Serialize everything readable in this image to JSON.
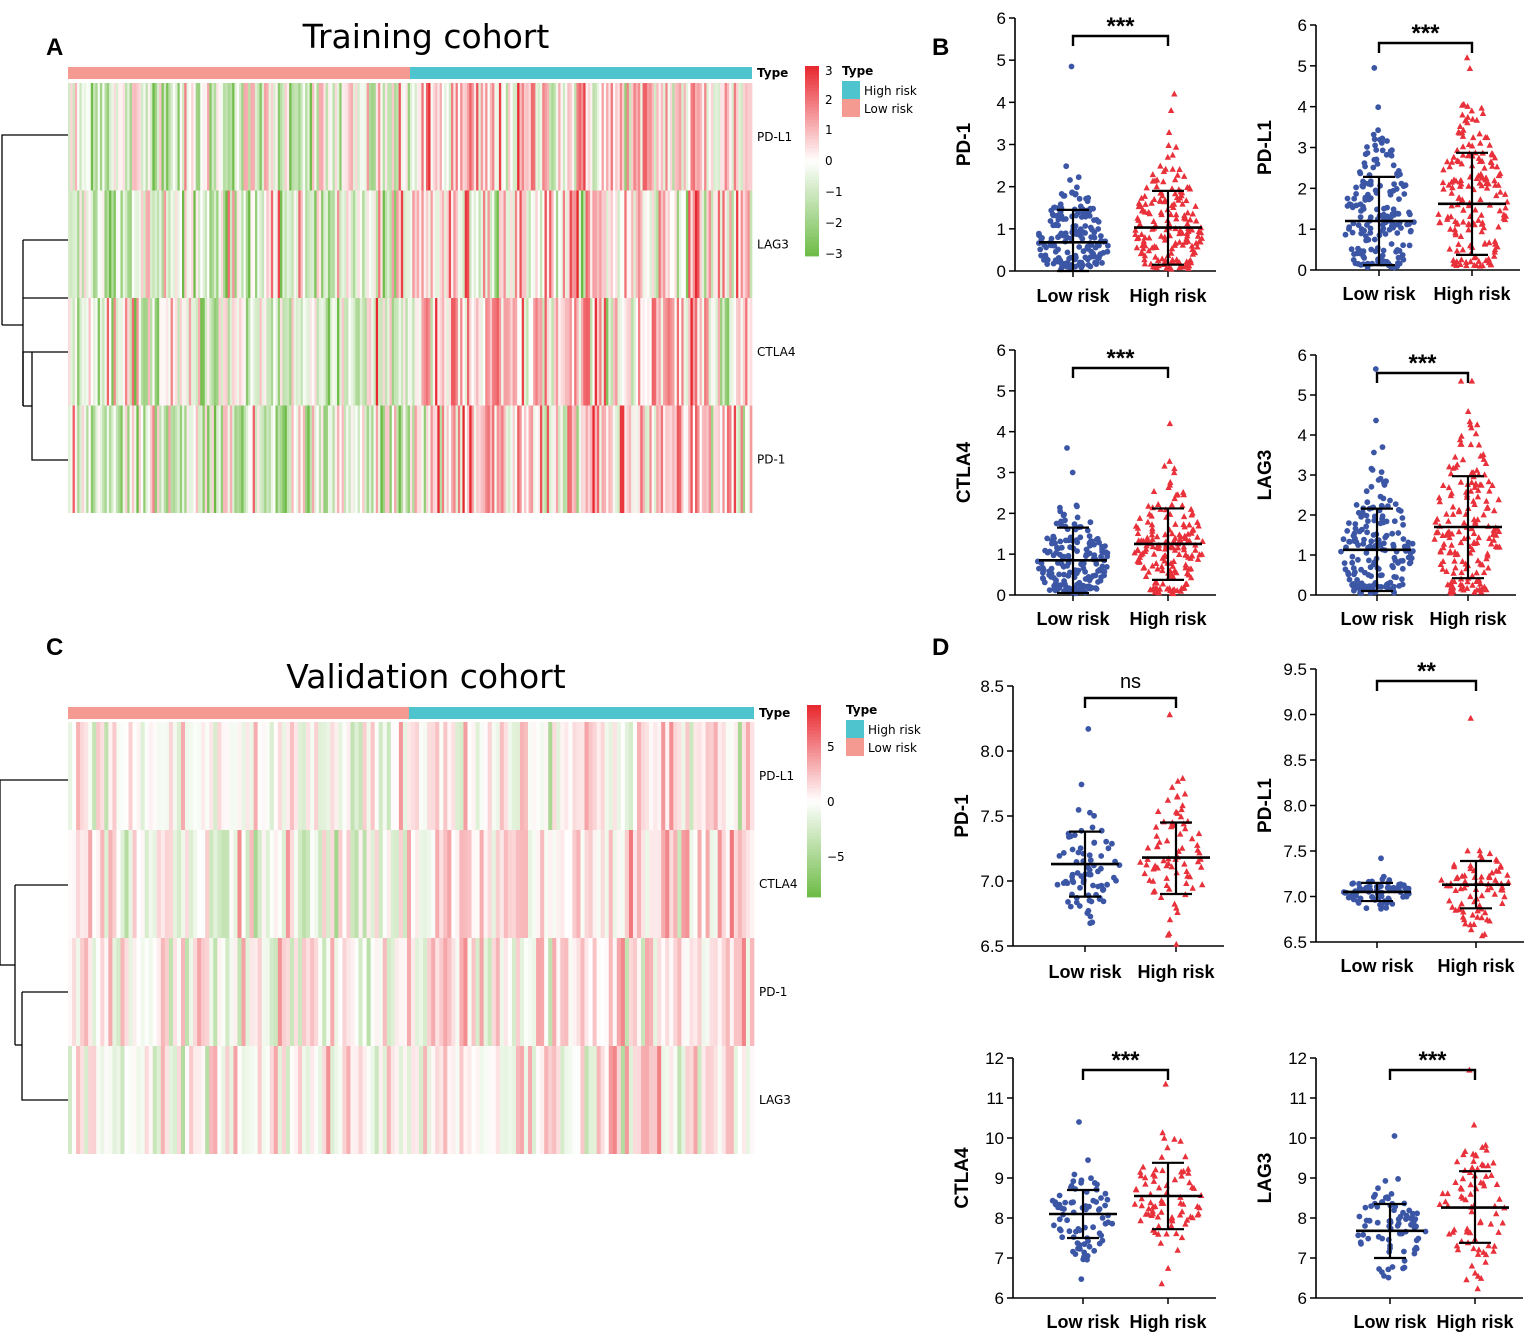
{
  "figure": {
    "panel_labels": [
      "A",
      "B",
      "C",
      "D"
    ],
    "colors": {
      "high_risk": "#4ec4cf",
      "low_risk": "#f49a90",
      "low_points": "#3c56a6",
      "high_points": "#e8313a",
      "heat_high": "#e8262d",
      "heat_low": "#6dbb45"
    }
  },
  "chart_data": [
    {
      "id": "A",
      "type": "heatmap",
      "title": "Training cohort",
      "annotation_label": "Type",
      "legend": {
        "title": "Type",
        "entries": [
          "High risk",
          "Low risk"
        ]
      },
      "rows": [
        "PD-L1",
        "LAG3",
        "CTLA4",
        "PD-1"
      ],
      "groups": [
        "Low risk",
        "High risk"
      ],
      "scale_ticks": [
        "3",
        "2",
        "1",
        "0",
        "−1",
        "−2",
        "−3"
      ],
      "color_range": [
        -3,
        3
      ]
    },
    {
      "id": "C",
      "type": "heatmap",
      "title": "Validation cohort",
      "annotation_label": "Type",
      "legend": {
        "title": "Type",
        "entries": [
          "High risk",
          "Low risk"
        ]
      },
      "rows": [
        "PD-L1",
        "CTLA4",
        "PD-1",
        "LAG3"
      ],
      "groups": [
        "Low risk",
        "High risk"
      ],
      "scale_ticks": [
        "5",
        "0",
        "−5"
      ],
      "color_range": [
        -7,
        7
      ]
    },
    {
      "id": "B1",
      "type": "scatter",
      "ylabel": "PD-1",
      "categories": [
        "Low risk",
        "High risk"
      ],
      "ylim": [
        0,
        6
      ],
      "yticks": [
        "0",
        "1",
        "2",
        "3",
        "4",
        "5",
        "6"
      ],
      "significance": "***",
      "series": [
        {
          "name": "Low risk",
          "mean": 0.68,
          "sd_low": 0.0,
          "sd_high": 1.45,
          "max": 4.85,
          "n": 180
        },
        {
          "name": "High risk",
          "mean": 1.03,
          "sd_low": 0.15,
          "sd_high": 1.9,
          "max": 4.2,
          "n": 180
        }
      ]
    },
    {
      "id": "B2",
      "type": "scatter",
      "ylabel": "PD-L1",
      "categories": [
        "Low risk",
        "High risk"
      ],
      "ylim": [
        0,
        6
      ],
      "yticks": [
        "0",
        "1",
        "2",
        "3",
        "4",
        "5",
        "6"
      ],
      "significance": "***",
      "series": [
        {
          "name": "Low risk",
          "mean": 1.2,
          "sd_low": 0.12,
          "sd_high": 2.28,
          "max": 4.95,
          "n": 180
        },
        {
          "name": "High risk",
          "mean": 1.62,
          "sd_low": 0.37,
          "sd_high": 2.87,
          "max": 5.2,
          "n": 180
        }
      ]
    },
    {
      "id": "B3",
      "type": "scatter",
      "ylabel": "CTLA4",
      "categories": [
        "Low risk",
        "High risk"
      ],
      "ylim": [
        0,
        6
      ],
      "yticks": [
        "0",
        "1",
        "2",
        "3",
        "4",
        "5",
        "6"
      ],
      "significance": "***",
      "series": [
        {
          "name": "Low risk",
          "mean": 0.85,
          "sd_low": 0.05,
          "sd_high": 1.65,
          "max": 3.6,
          "n": 180
        },
        {
          "name": "High risk",
          "mean": 1.25,
          "sd_low": 0.37,
          "sd_high": 2.12,
          "max": 4.2,
          "n": 180
        }
      ]
    },
    {
      "id": "B4",
      "type": "scatter",
      "ylabel": "LAG3",
      "categories": [
        "Low risk",
        "High risk"
      ],
      "ylim": [
        0,
        6
      ],
      "yticks": [
        "0",
        "1",
        "2",
        "3",
        "4",
        "5",
        "6"
      ],
      "significance": "***",
      "series": [
        {
          "name": "Low risk",
          "mean": 1.13,
          "sd_low": 0.1,
          "sd_high": 2.16,
          "max": 5.65,
          "n": 180
        },
        {
          "name": "High risk",
          "mean": 1.7,
          "sd_low": 0.42,
          "sd_high": 2.97,
          "max": 5.35,
          "n": 180
        }
      ]
    },
    {
      "id": "D1",
      "type": "scatter",
      "ylabel": "PD-1",
      "categories": [
        "Low risk",
        "High risk"
      ],
      "ylim": [
        6.5,
        8.5
      ],
      "yticks": [
        "6.5",
        "7.0",
        "7.5",
        "8.0",
        "8.5"
      ],
      "significance": "ns",
      "series": [
        {
          "name": "Low risk",
          "mean": 7.13,
          "sd_low": 6.88,
          "sd_high": 7.38,
          "max": 8.17,
          "n": 80
        },
        {
          "name": "High risk",
          "mean": 7.18,
          "sd_low": 6.9,
          "sd_high": 7.45,
          "max": 8.28,
          "n": 80
        }
      ]
    },
    {
      "id": "D2",
      "type": "scatter",
      "ylabel": "PD-L1",
      "categories": [
        "Low risk",
        "High risk"
      ],
      "ylim": [
        6.5,
        9.5
      ],
      "yticks": [
        "6.5",
        "7.0",
        "7.5",
        "8.0",
        "8.5",
        "9.0",
        "9.5"
      ],
      "significance": "**",
      "series": [
        {
          "name": "Low risk",
          "mean": 7.05,
          "sd_low": 6.95,
          "sd_high": 7.15,
          "max": 7.42,
          "n": 80
        },
        {
          "name": "High risk",
          "mean": 7.13,
          "sd_low": 6.87,
          "sd_high": 7.39,
          "max": 8.96,
          "n": 80
        }
      ]
    },
    {
      "id": "D3",
      "type": "scatter",
      "ylabel": "CTLA4",
      "categories": [
        "Low risk",
        "High risk"
      ],
      "ylim": [
        6,
        12
      ],
      "yticks": [
        "6",
        "7",
        "8",
        "9",
        "10",
        "11",
        "12"
      ],
      "significance": "***",
      "series": [
        {
          "name": "Low risk",
          "mean": 8.1,
          "sd_low": 7.5,
          "sd_high": 8.7,
          "max": 10.4,
          "n": 80
        },
        {
          "name": "High risk",
          "mean": 8.55,
          "sd_low": 7.72,
          "sd_high": 9.38,
          "max": 11.35,
          "n": 80
        }
      ]
    },
    {
      "id": "D4",
      "type": "scatter",
      "ylabel": "LAG3",
      "categories": [
        "Low risk",
        "High risk"
      ],
      "ylim": [
        6,
        12
      ],
      "yticks": [
        "6",
        "7",
        "8",
        "9",
        "10",
        "11",
        "12"
      ],
      "significance": "***",
      "series": [
        {
          "name": "Low risk",
          "mean": 7.68,
          "sd_low": 7.0,
          "sd_high": 8.35,
          "max": 10.05,
          "n": 80
        },
        {
          "name": "High risk",
          "mean": 8.26,
          "sd_low": 7.38,
          "sd_high": 9.17,
          "max": 11.7,
          "n": 80
        }
      ]
    }
  ]
}
